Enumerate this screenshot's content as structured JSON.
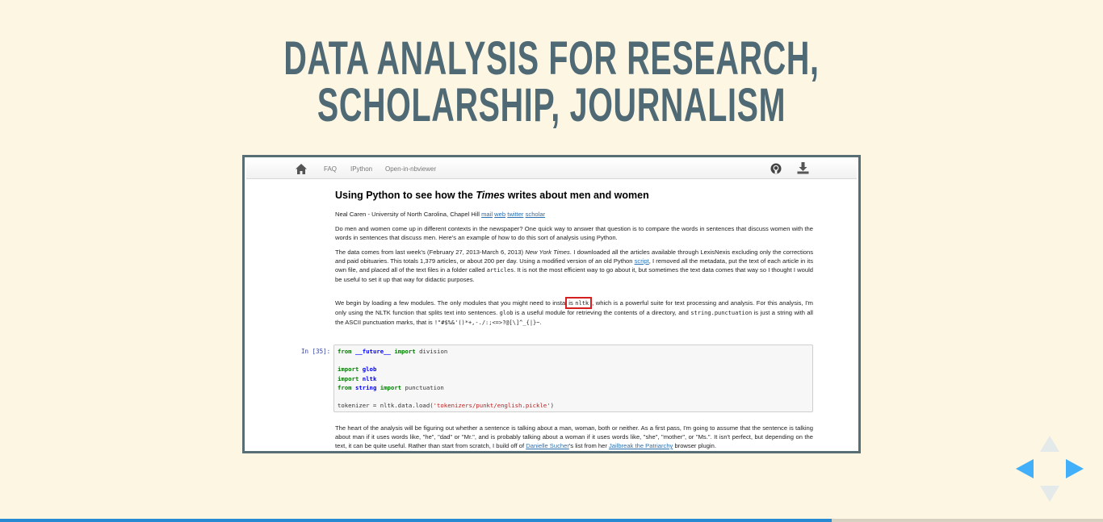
{
  "slide": {
    "title_line1": "DATA ANALYSIS FOR RESEARCH,",
    "title_line2": "SCHOLARSHIP, JOURNALISM"
  },
  "navbar": {
    "links": [
      "FAQ",
      "IPython",
      "Open-in-nbviewer"
    ],
    "icons": [
      "home-icon",
      "github-icon",
      "download-icon"
    ]
  },
  "notebook": {
    "title_pre": "Using Python to see how the ",
    "title_em": "Times",
    "title_post": " writes about men and women",
    "author": "Neal Caren - University of North Carolina, Chapel Hill",
    "author_links": [
      "mail",
      "web",
      "twitter",
      "scholar"
    ],
    "p1": "Do men and women come up in different contexts in the newspaper? One quick way to answer that question is to compare the words in sentences that discuss women with the words in sentences that discuss men. Here's an example of how to do this sort of analysis using Python.",
    "p2_a": "The data comes from last week's (February 27, 2013-March 6, 2013) ",
    "p2_em": "New York Times",
    "p2_b": ". I downloaded all the articles available through LexisNexis excluding only the corrections and paid obituaries. This totals 1,379 articles, or about 200 per day. Using a modified version of an old Python ",
    "p2_link": "script",
    "p2_c": ", I removed all the metadata, put the text of each article in its own file, and placed all of the text files in a folder called ",
    "p2_code": "articles",
    "p2_d": ". It is not the most efficient way to go about it, but sometimes the text data comes that way so I thought I would be useful to set it up that way for didactic purposes.",
    "p3_a": "We begin by loading a few modules. The only modules that you might need to insta",
    "p3_hl_pre": "is ",
    "p3_hl_code": "nltk",
    "p3_b": ", which is a powerful suite for text processing and analysis. For this analysis, I'm only using the NLTK function that splits text into sentences. ",
    "p3_code1": "glob",
    "p3_c": " is a useful module for retrieving the contents of a directory, and ",
    "p3_code2": "string.punctuation",
    "p3_d": " is just a string with all the ASCII punctuation marks, that is ",
    "p3_code3": "!\"#$%&'()*+,-./:;<=>?@[\\]^_{|}~",
    "p3_e": ".",
    "prompt": "In [35]:",
    "code": {
      "l1_kw": "from",
      "l1_mod": "__future__",
      "l1_kw2": "import",
      "l1_rest": " division",
      "l3_kw": "import",
      "l3_mod": "glob",
      "l4_kw": "import",
      "l4_mod": "nltk",
      "l5_kw": "from",
      "l5_mod": "string",
      "l5_kw2": "import",
      "l5_rest": " punctuation",
      "l7_pre": "tokenizer = nltk.data.load(",
      "l7_str": "'tokenizers/punkt/english.pickle'",
      "l7_post": ")"
    },
    "p4_a": "The heart of the analysis will be figuring out whether a sentence is talking about a man, woman, both or neither. As a first pass, I'm going to assume that the sentence is talking about man if it uses words like, \"he\", \"dad\" or \"Mr.\", and is probably talking about a woman if it uses words like, \"she\", \"mother\", or \"Ms.\". It isn't perfect, but depending on the text, it can be quite useful. Rather than start from scratch, I build off of ",
    "p4_link1": "Danielle Sucher",
    "p4_b": "'s list from her ",
    "p4_link2": "Jailbreak the Patriarchy",
    "p4_c": " browser plugin."
  },
  "controls": {
    "up_enabled": false,
    "down_enabled": false,
    "left_enabled": true,
    "right_enabled": true
  },
  "progress_fraction": 0.754,
  "colors": {
    "background": "#fdf6e3",
    "title": "#4f6975",
    "accent": "#42affa",
    "progress": "#268bd2"
  }
}
